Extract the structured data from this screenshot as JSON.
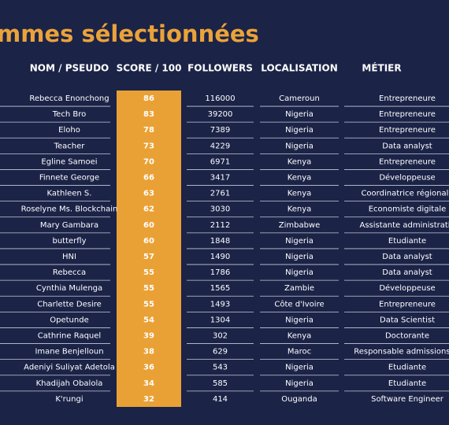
{
  "header": {
    "title": "mmes sélectionnées"
  },
  "table": {
    "columns": [
      "NOM / PSEUDO",
      "SCORE / 100",
      "FOLLOWERS",
      "LOCALISATION",
      "MÉTIER"
    ],
    "rows": [
      [
        "Rebecca Enonchong",
        86,
        116000,
        "Cameroun",
        "Entrepreneure"
      ],
      [
        "Tech Bro",
        83,
        39200,
        "Nigeria",
        "Entrepreneure"
      ],
      [
        "Eloho",
        78,
        7389,
        "Nigeria",
        "Entrepreneure"
      ],
      [
        "Teacher",
        73,
        4229,
        "Nigeria",
        "Data analyst"
      ],
      [
        "Egline Samoei",
        70,
        6971,
        "Kenya",
        "Entrepreneure"
      ],
      [
        "Finnete George",
        66,
        3417,
        "Kenya",
        "Développeuse"
      ],
      [
        "Kathleen S.",
        63,
        2761,
        "Kenya",
        "Coordinatrice régionale"
      ],
      [
        "Roselyne Ms. Blockchain",
        62,
        3030,
        "Kenya",
        "Economiste digitale"
      ],
      [
        "Mary Gambara",
        60,
        2112,
        "Zimbabwe",
        "Assistante administrativ"
      ],
      [
        "butterfly",
        60,
        1848,
        "Nigeria",
        "Etudiante"
      ],
      [
        "HNI",
        57,
        1490,
        "Nigeria",
        "Data analyst"
      ],
      [
        "Rebecca",
        55,
        1786,
        "Nigeria",
        "Data analyst"
      ],
      [
        "Cynthia Mulenga",
        55,
        1565,
        "Zambie",
        "Développeuse"
      ],
      [
        "Charlette Desire",
        55,
        1493,
        "Côte d'Ivoire",
        "Entrepreneure"
      ],
      [
        "Opetunde",
        54,
        1304,
        "Nigeria",
        "Data Scientist"
      ],
      [
        "Cathrine Raquel",
        39,
        302,
        "Kenya",
        "Doctorante"
      ],
      [
        "Imane Benjelloun",
        38,
        629,
        "Maroc",
        "Responsable admissions Af"
      ],
      [
        "Adeniyi Suliyat Adetola",
        36,
        543,
        "Nigeria",
        "Etudiante"
      ],
      [
        "Khadijah Obalola",
        34,
        585,
        "Nigeria",
        "Etudiante"
      ],
      [
        "K'rungi",
        32,
        414,
        "Ouganda",
        "Software Engineer"
      ]
    ]
  }
}
